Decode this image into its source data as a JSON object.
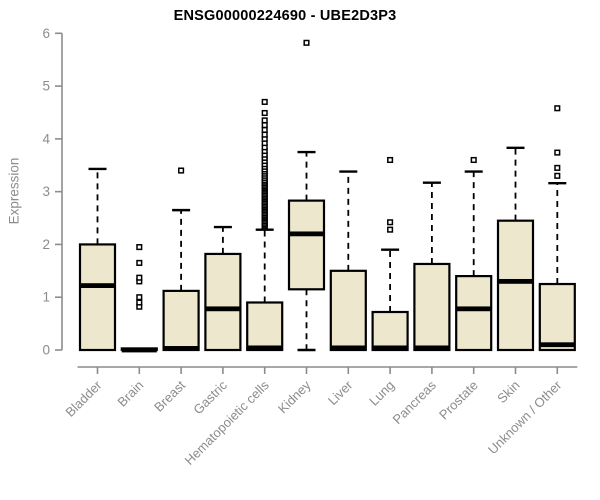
{
  "chart_data": {
    "type": "boxplot",
    "title": "ENSG00000224690 - UBE2D3P3",
    "ylabel": "Expression",
    "xlabel": "",
    "ylim": [
      0,
      6
    ],
    "yticks": [
      0,
      1,
      2,
      3,
      4,
      5,
      6
    ],
    "grid": false,
    "legend_position": "none",
    "categories": [
      "Bladder",
      "Brain",
      "Breast",
      "Gastric",
      "Hematopoietic cells",
      "Kidney",
      "Liver",
      "Lung",
      "Pancreas",
      "Prostate",
      "Skin",
      "Unknown / Other"
    ],
    "series": [
      {
        "name": "Bladder",
        "whisker_low": 0,
        "q1": 0,
        "median": 1.22,
        "q3": 2.0,
        "whisker_high": 3.43,
        "outliers": []
      },
      {
        "name": "Brain",
        "whisker_low": 0,
        "q1": 0,
        "median": 0,
        "q3": 0.03,
        "whisker_high": 0.03,
        "outliers": [
          0.82,
          0.9,
          1.0,
          1.3,
          1.37,
          1.65,
          1.95
        ]
      },
      {
        "name": "Breast",
        "whisker_low": 0,
        "q1": 0,
        "median": 0.03,
        "q3": 1.12,
        "whisker_high": 2.65,
        "outliers": [
          3.4
        ]
      },
      {
        "name": "Gastric",
        "whisker_low": 0,
        "q1": 0,
        "median": 0.78,
        "q3": 1.82,
        "whisker_high": 2.33,
        "outliers": []
      },
      {
        "name": "Hematopoietic cells",
        "whisker_low": 0,
        "q1": 0,
        "median": 0.04,
        "q3": 0.9,
        "whisker_high": 2.28,
        "outliers": [
          2.32,
          2.35,
          2.38,
          2.41,
          2.44,
          2.47,
          2.5,
          2.53,
          2.56,
          2.59,
          2.62,
          2.65,
          2.68,
          2.71,
          2.74,
          2.77,
          2.8,
          2.83,
          2.86,
          2.89,
          2.92,
          2.95,
          2.98,
          3.01,
          3.04,
          3.07,
          3.1,
          3.13,
          3.16,
          3.19,
          3.22,
          3.26,
          3.3,
          3.34,
          3.38,
          3.42,
          3.47,
          3.52,
          3.58,
          3.64,
          3.7,
          3.77,
          3.84,
          3.92,
          4.0,
          4.08,
          4.17,
          4.26,
          4.35,
          4.49,
          4.7
        ]
      },
      {
        "name": "Kidney",
        "whisker_low": 0,
        "q1": 1.15,
        "median": 2.2,
        "q3": 2.83,
        "whisker_high": 3.75,
        "outliers": [
          5.82
        ]
      },
      {
        "name": "Liver",
        "whisker_low": 0,
        "q1": 0,
        "median": 0.04,
        "q3": 1.5,
        "whisker_high": 3.38,
        "outliers": []
      },
      {
        "name": "Lung",
        "whisker_low": 0,
        "q1": 0,
        "median": 0.04,
        "q3": 0.72,
        "whisker_high": 1.9,
        "outliers": [
          2.28,
          2.42,
          3.6
        ]
      },
      {
        "name": "Pancreas",
        "whisker_low": 0,
        "q1": 0,
        "median": 0.04,
        "q3": 1.63,
        "whisker_high": 3.17,
        "outliers": []
      },
      {
        "name": "Prostate",
        "whisker_low": 0,
        "q1": 0,
        "median": 0.78,
        "q3": 1.4,
        "whisker_high": 3.38,
        "outliers": [
          3.6
        ]
      },
      {
        "name": "Skin",
        "whisker_low": 0,
        "q1": 0,
        "median": 1.3,
        "q3": 2.45,
        "whisker_high": 3.83,
        "outliers": []
      },
      {
        "name": "Unknown / Other",
        "whisker_low": 0,
        "q1": 0,
        "median": 0.1,
        "q3": 1.25,
        "whisker_high": 3.16,
        "outliers": [
          3.3,
          3.45,
          3.74,
          4.58
        ]
      }
    ],
    "colors": {
      "background": "#FFFFFF",
      "box_fill": "#EDE8CD",
      "box_stroke": "#000000",
      "median": "#000000",
      "whisker": "#000000",
      "outlier_stroke": "#000000",
      "outlier_fill": "#FFFFFF",
      "axis": "#8C8C8C",
      "tick_label": "#8C8C8C",
      "title": "#000000"
    }
  }
}
